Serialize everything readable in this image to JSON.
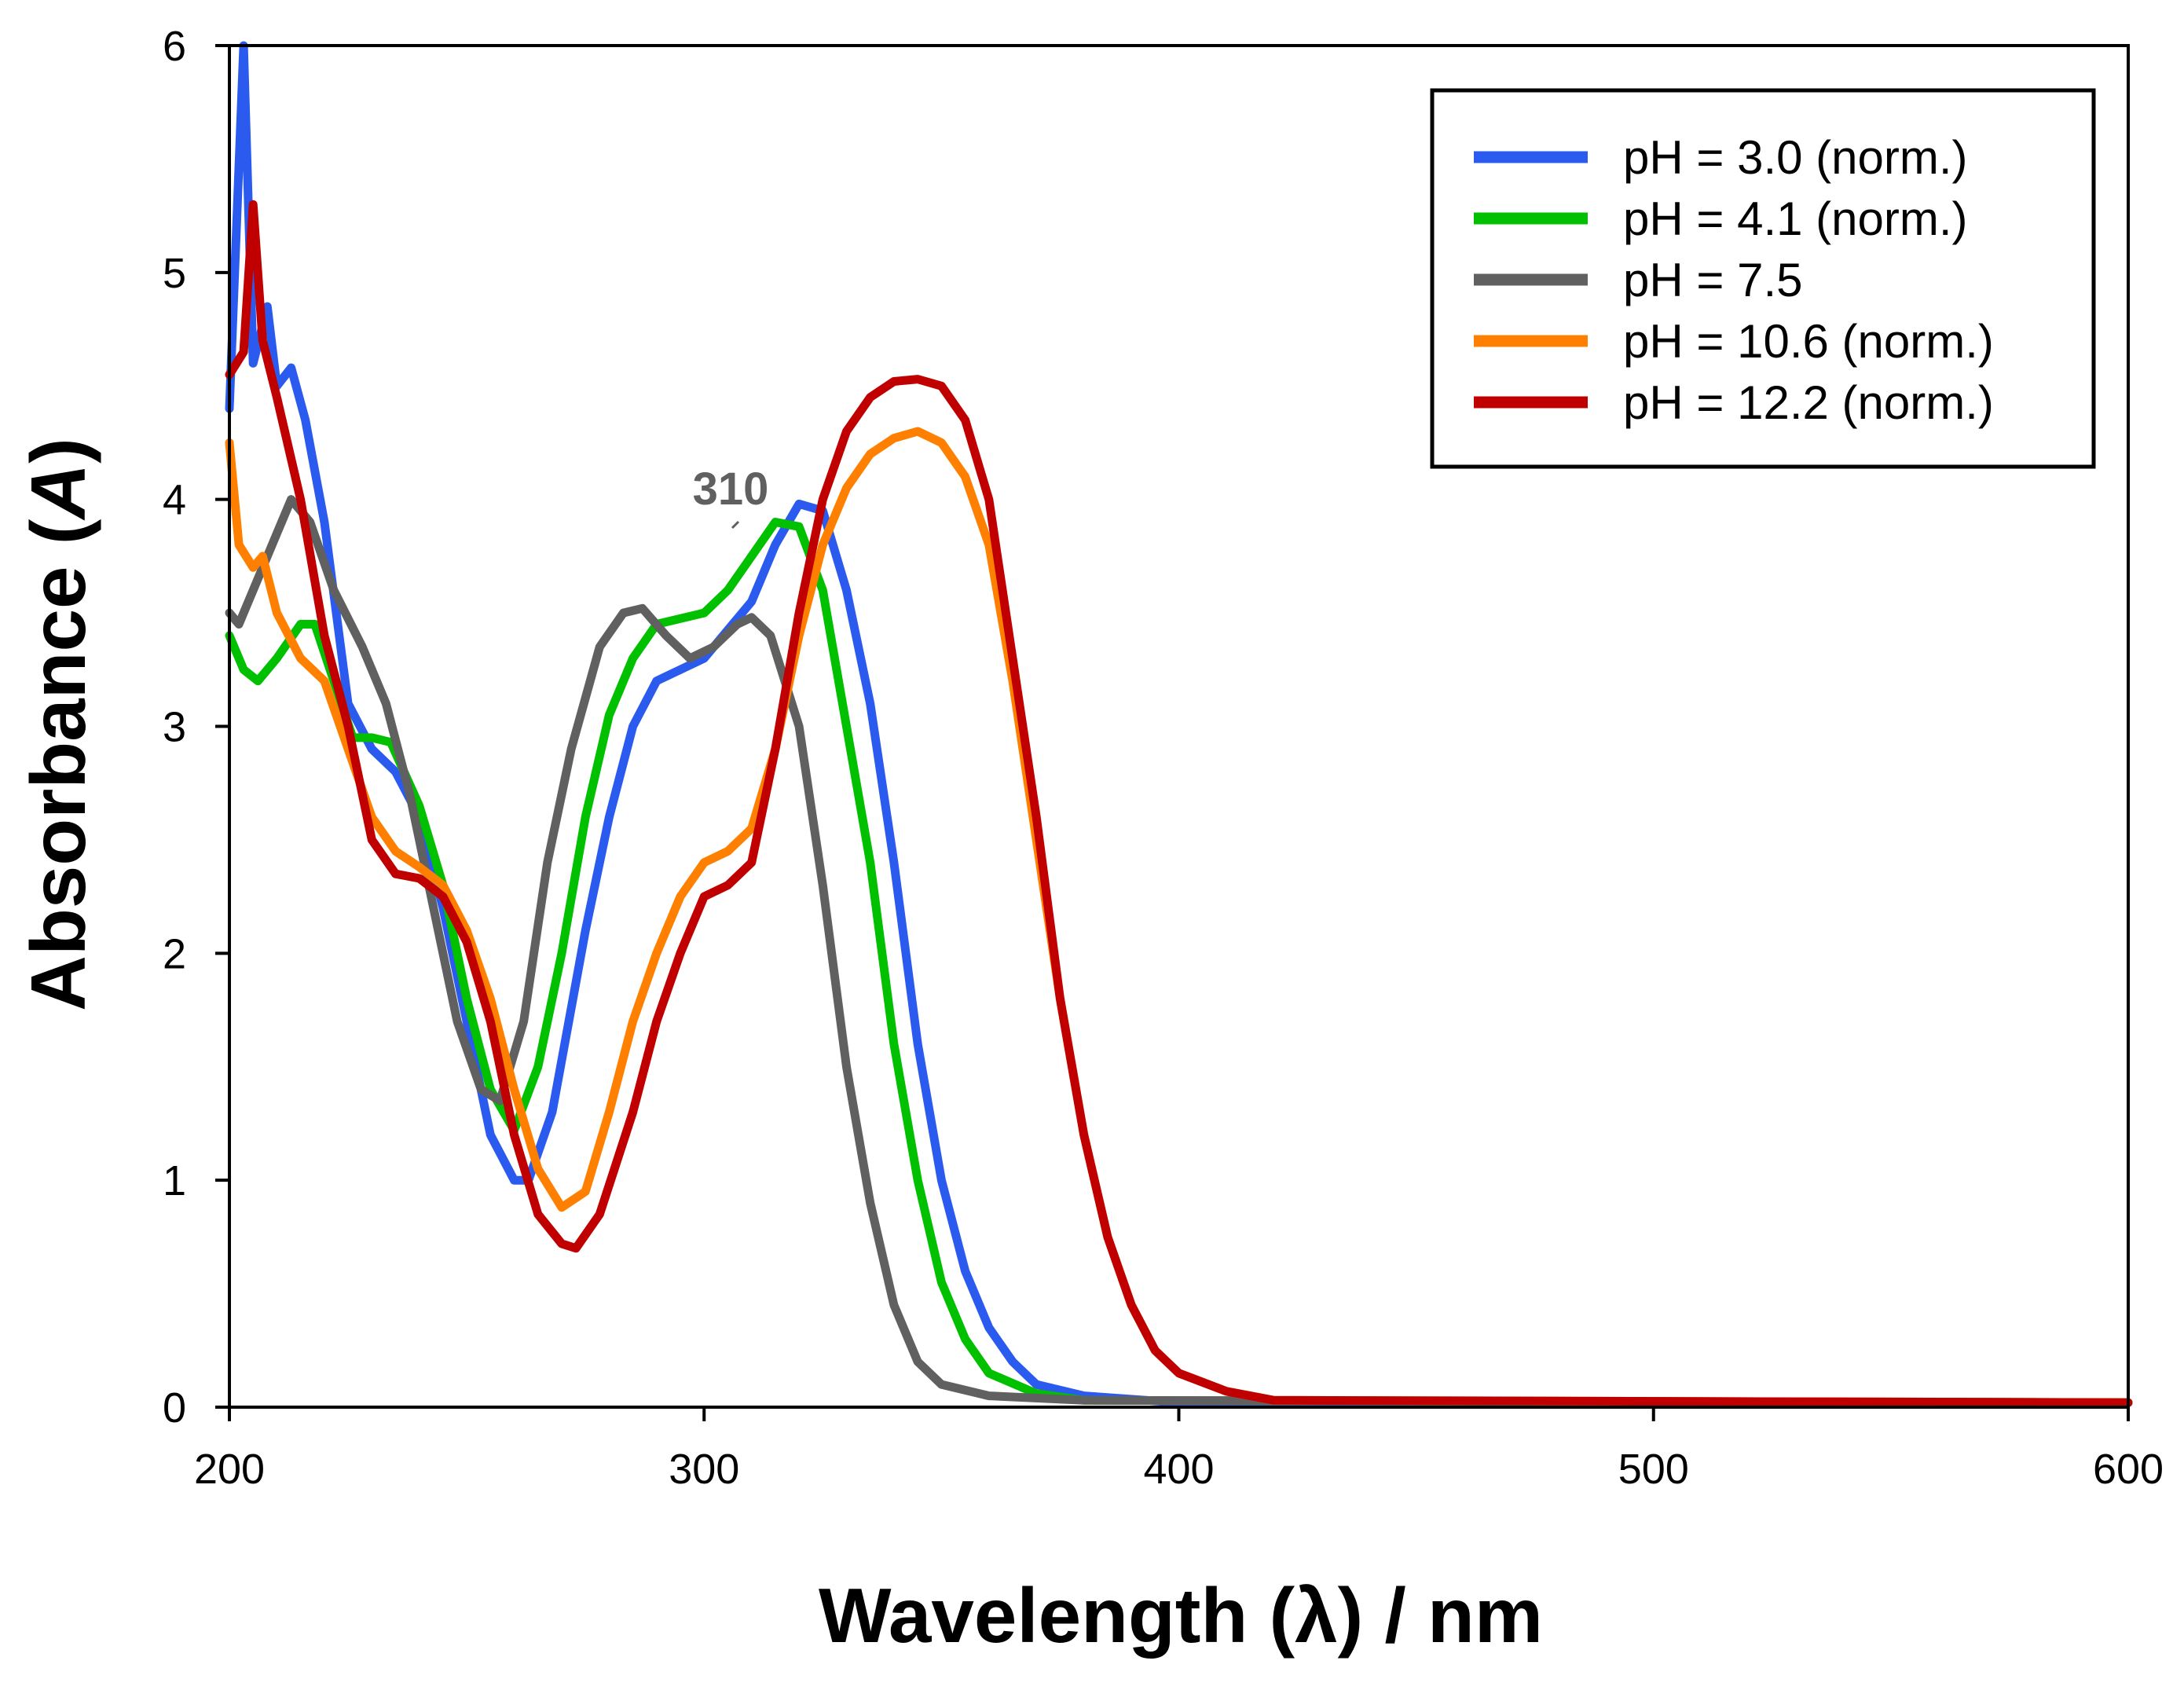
{
  "chart_data": {
    "type": "line",
    "title": "",
    "xlabel": "Wavelength (λ) / nm",
    "ylabel_main": "Absorbance (",
    "ylabel_italic": "A",
    "ylabel_end": ")",
    "xlim": [
      200,
      600
    ],
    "ylim": [
      0,
      6
    ],
    "xticks": [
      200,
      300,
      400,
      500,
      600
    ],
    "yticks": [
      0,
      1,
      2,
      3,
      4,
      5,
      6
    ],
    "xtick_labels": [
      "200",
      "300",
      "400",
      "500",
      "600"
    ],
    "ytick_labels": [
      "0",
      "1",
      "2",
      "3",
      "4",
      "5",
      "6"
    ],
    "grid": false,
    "legend_position": "top-right",
    "annotations": [
      {
        "text": "310",
        "x": 310,
        "y": 4.0
      }
    ],
    "series": [
      {
        "name": "pH = 3.0 (norm.)",
        "color": "#2B5BEE",
        "x": [
          200,
          203,
          205,
          208,
          210,
          213,
          216,
          220,
          225,
          230,
          235,
          240,
          245,
          250,
          255,
          260,
          263,
          268,
          275,
          280,
          285,
          290,
          300,
          310,
          315,
          320,
          325,
          330,
          335,
          340,
          345,
          350,
          355,
          360,
          365,
          370,
          380,
          400,
          600
        ],
        "y": [
          4.4,
          6.0,
          4.6,
          4.85,
          4.5,
          4.58,
          4.35,
          3.9,
          3.1,
          2.9,
          2.8,
          2.6,
          2.2,
          1.7,
          1.2,
          1.0,
          1.0,
          1.3,
          2.1,
          2.6,
          3.0,
          3.2,
          3.3,
          3.55,
          3.8,
          3.98,
          3.95,
          3.6,
          3.1,
          2.4,
          1.6,
          1.0,
          0.6,
          0.35,
          0.2,
          0.1,
          0.05,
          0.02,
          0.02
        ]
      },
      {
        "name": "pH = 4.1 (norm.)",
        "color": "#00C000",
        "x": [
          200,
          203,
          206,
          210,
          215,
          218,
          222,
          226,
          230,
          234,
          240,
          245,
          250,
          255,
          260,
          265,
          270,
          275,
          280,
          285,
          290,
          300,
          305,
          310,
          315,
          320,
          325,
          330,
          335,
          340,
          345,
          350,
          355,
          360,
          370,
          380,
          600
        ],
        "y": [
          3.4,
          3.25,
          3.2,
          3.3,
          3.45,
          3.45,
          3.2,
          2.95,
          2.95,
          2.93,
          2.65,
          2.3,
          1.8,
          1.4,
          1.22,
          1.5,
          2.0,
          2.6,
          3.05,
          3.3,
          3.45,
          3.5,
          3.6,
          3.75,
          3.9,
          3.88,
          3.6,
          3.0,
          2.4,
          1.6,
          1.0,
          0.55,
          0.3,
          0.15,
          0.06,
          0.03,
          0.02
        ]
      },
      {
        "name": "pH = 7.5",
        "color": "#606060",
        "x": [
          200,
          202,
          205,
          210,
          213,
          217,
          222,
          228,
          233,
          238,
          243,
          248,
          253,
          257,
          262,
          267,
          272,
          278,
          283,
          287,
          292,
          297,
          302,
          307,
          310,
          314,
          320,
          325,
          330,
          335,
          340,
          345,
          350,
          360,
          380,
          600
        ],
        "y": [
          3.5,
          3.45,
          3.6,
          3.85,
          4.0,
          3.9,
          3.6,
          3.35,
          3.1,
          2.7,
          2.2,
          1.7,
          1.4,
          1.35,
          1.7,
          2.4,
          2.9,
          3.35,
          3.5,
          3.52,
          3.4,
          3.3,
          3.35,
          3.45,
          3.48,
          3.4,
          3.0,
          2.3,
          1.5,
          0.9,
          0.45,
          0.2,
          0.1,
          0.05,
          0.03,
          0.02
        ]
      },
      {
        "name": "pH = 10.6 (norm.)",
        "color": "#FF8000",
        "x": [
          200,
          202,
          205,
          207,
          210,
          215,
          220,
          225,
          230,
          235,
          240,
          245,
          250,
          255,
          260,
          265,
          270,
          275,
          280,
          285,
          290,
          295,
          300,
          305,
          310,
          315,
          320,
          325,
          330,
          335,
          340,
          345,
          350,
          355,
          360,
          365,
          370,
          375,
          380,
          385,
          390,
          395,
          400,
          410,
          420,
          600
        ],
        "y": [
          4.25,
          3.8,
          3.7,
          3.75,
          3.5,
          3.3,
          3.2,
          2.9,
          2.6,
          2.45,
          2.38,
          2.3,
          2.1,
          1.8,
          1.4,
          1.05,
          0.88,
          0.95,
          1.3,
          1.7,
          2.0,
          2.25,
          2.4,
          2.45,
          2.55,
          2.9,
          3.4,
          3.8,
          4.05,
          4.2,
          4.27,
          4.3,
          4.25,
          4.1,
          3.8,
          3.2,
          2.5,
          1.8,
          1.2,
          0.75,
          0.45,
          0.25,
          0.15,
          0.07,
          0.03,
          0.02
        ]
      },
      {
        "name": "pH = 12.2 (norm.)",
        "color": "#C00000",
        "x": [
          200,
          203,
          205,
          207,
          210,
          215,
          220,
          225,
          230,
          235,
          240,
          245,
          250,
          255,
          260,
          265,
          270,
          273,
          278,
          285,
          290,
          295,
          300,
          305,
          310,
          315,
          320,
          325,
          330,
          335,
          340,
          345,
          350,
          355,
          360,
          365,
          370,
          375,
          380,
          385,
          390,
          395,
          400,
          410,
          420,
          600
        ],
        "y": [
          4.55,
          4.65,
          5.3,
          4.7,
          4.45,
          4.0,
          3.4,
          3.0,
          2.5,
          2.35,
          2.33,
          2.25,
          2.05,
          1.7,
          1.2,
          0.85,
          0.72,
          0.7,
          0.85,
          1.3,
          1.7,
          2.0,
          2.25,
          2.3,
          2.4,
          2.9,
          3.5,
          4.0,
          4.3,
          4.45,
          4.52,
          4.53,
          4.5,
          4.35,
          4.0,
          3.3,
          2.6,
          1.8,
          1.2,
          0.75,
          0.45,
          0.25,
          0.15,
          0.07,
          0.03,
          0.02
        ]
      }
    ]
  }
}
